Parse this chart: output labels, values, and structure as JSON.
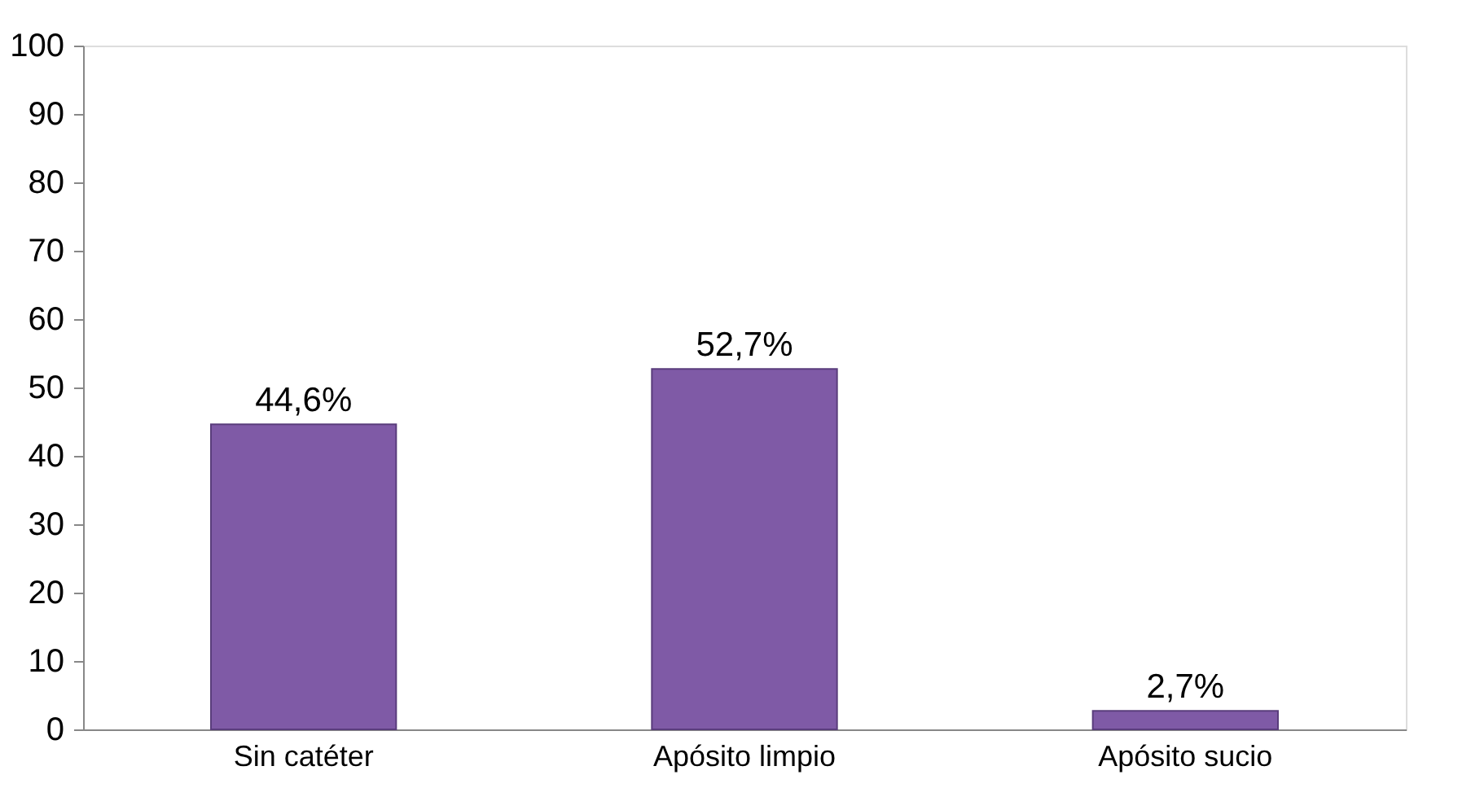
{
  "chart_data": {
    "type": "bar",
    "categories": [
      "Sin catéter",
      "Apósito  limpio",
      "Apósito sucio"
    ],
    "values": [
      44.6,
      52.7,
      2.7
    ],
    "value_labels": [
      "44,6%",
      "52,7%",
      "2,7%"
    ],
    "color": "#7f5aa6",
    "ylim": [
      0,
      100
    ],
    "yticks": [
      0,
      10,
      20,
      30,
      40,
      50,
      60,
      70,
      80,
      90,
      100
    ],
    "grid": false
  }
}
